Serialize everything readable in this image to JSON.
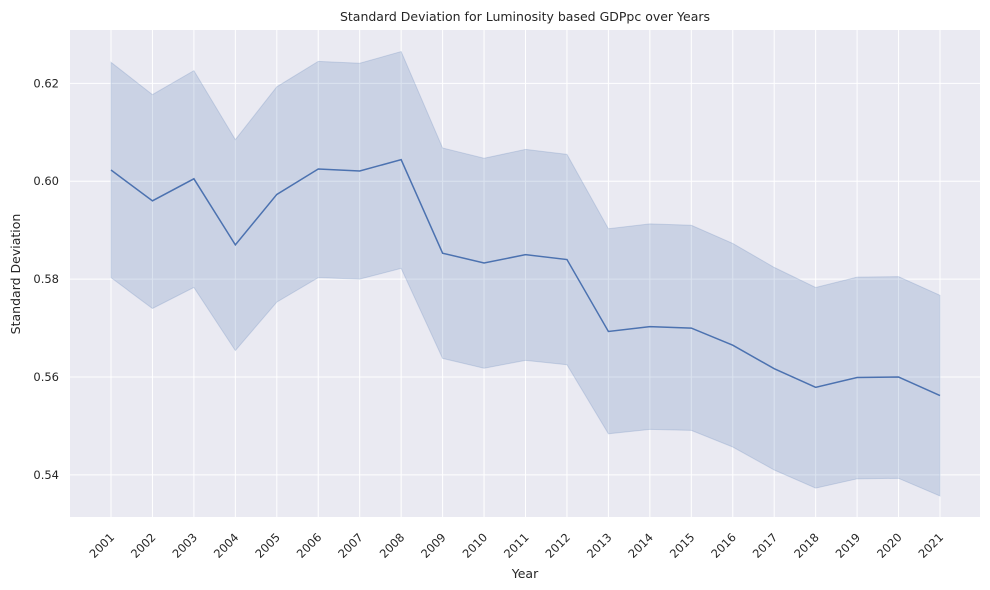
{
  "chart_data": {
    "type": "line",
    "title": "Standard Deviation for Luminosity based GDPpc over Years",
    "xlabel": "Year",
    "ylabel": "Standard Deviation",
    "categories": [
      "2001",
      "2002",
      "2003",
      "2004",
      "2005",
      "2006",
      "2007",
      "2008",
      "2009",
      "2010",
      "2011",
      "2012",
      "2013",
      "2014",
      "2015",
      "2016",
      "2017",
      "2018",
      "2019",
      "2020",
      "2021"
    ],
    "series": [
      {
        "values": [
          0.6023,
          0.596,
          0.6005,
          0.587,
          0.5973,
          0.6025,
          0.6021,
          0.6044,
          0.5853,
          0.5833,
          0.585,
          0.584,
          0.5693,
          0.5703,
          0.57,
          0.5665,
          0.5617,
          0.5579,
          0.5599,
          0.56,
          0.5562
        ],
        "upper": [
          0.6243,
          0.6177,
          0.6226,
          0.6085,
          0.6193,
          0.6245,
          0.6241,
          0.6265,
          0.6068,
          0.6047,
          0.6065,
          0.6055,
          0.5903,
          0.5913,
          0.591,
          0.5873,
          0.5824,
          0.5783,
          0.5804,
          0.5805,
          0.5767
        ],
        "lower": [
          0.5803,
          0.574,
          0.5783,
          0.5654,
          0.5753,
          0.5803,
          0.58,
          0.5822,
          0.5638,
          0.5618,
          0.5634,
          0.5625,
          0.5484,
          0.5493,
          0.5491,
          0.5457,
          0.541,
          0.5373,
          0.5392,
          0.5393,
          0.5357
        ]
      }
    ],
    "yticks": [
      0.54,
      0.56,
      0.58,
      0.6,
      0.62
    ],
    "ylim": [
      0.5314,
      0.6309
    ],
    "grid": true,
    "colors": {
      "line": "#4c72b0",
      "band": "#4c72b0",
      "background": "#eaeaf2",
      "grid": "#ffffff"
    }
  }
}
